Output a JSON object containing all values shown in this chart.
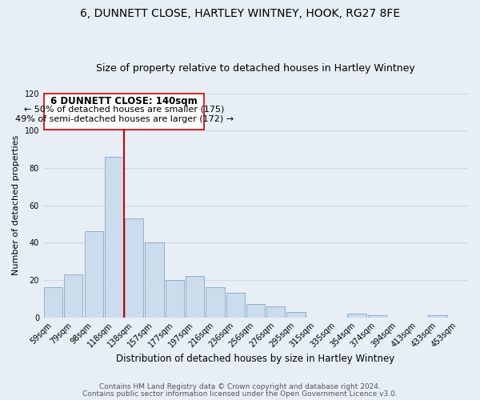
{
  "title": "6, DUNNETT CLOSE, HARTLEY WINTNEY, HOOK, RG27 8FE",
  "subtitle": "Size of property relative to detached houses in Hartley Wintney",
  "xlabel": "Distribution of detached houses by size in Hartley Wintney",
  "ylabel": "Number of detached properties",
  "bar_labels": [
    "59sqm",
    "79sqm",
    "98sqm",
    "118sqm",
    "138sqm",
    "157sqm",
    "177sqm",
    "197sqm",
    "216sqm",
    "236sqm",
    "256sqm",
    "276sqm",
    "295sqm",
    "315sqm",
    "335sqm",
    "354sqm",
    "374sqm",
    "394sqm",
    "413sqm",
    "433sqm",
    "453sqm"
  ],
  "bar_values": [
    16,
    23,
    46,
    86,
    53,
    40,
    20,
    22,
    16,
    13,
    7,
    6,
    3,
    0,
    0,
    2,
    1,
    0,
    0,
    1,
    0
  ],
  "bar_color": "#ccdcec",
  "bar_edge_color": "#8ab0cc",
  "background_color": "#e8eef6",
  "grid_color": "#d0d8e4",
  "vline_color": "#cc0000",
  "annotation_title": "6 DUNNETT CLOSE: 140sqm",
  "annotation_line1": "← 50% of detached houses are smaller (175)",
  "annotation_line2": "49% of semi-detached houses are larger (172) →",
  "annotation_box_color": "#ffffff",
  "annotation_box_edge": "#cc0000",
  "ylim": [
    0,
    120
  ],
  "yticks": [
    0,
    20,
    40,
    60,
    80,
    100,
    120
  ],
  "footer1": "Contains HM Land Registry data © Crown copyright and database right 2024.",
  "footer2": "Contains public sector information licensed under the Open Government Licence v3.0.",
  "title_fontsize": 10,
  "subtitle_fontsize": 9,
  "xlabel_fontsize": 8.5,
  "ylabel_fontsize": 8,
  "tick_fontsize": 7,
  "annotation_title_fontsize": 8.5,
  "annotation_fontsize": 8,
  "footer_fontsize": 6.5
}
